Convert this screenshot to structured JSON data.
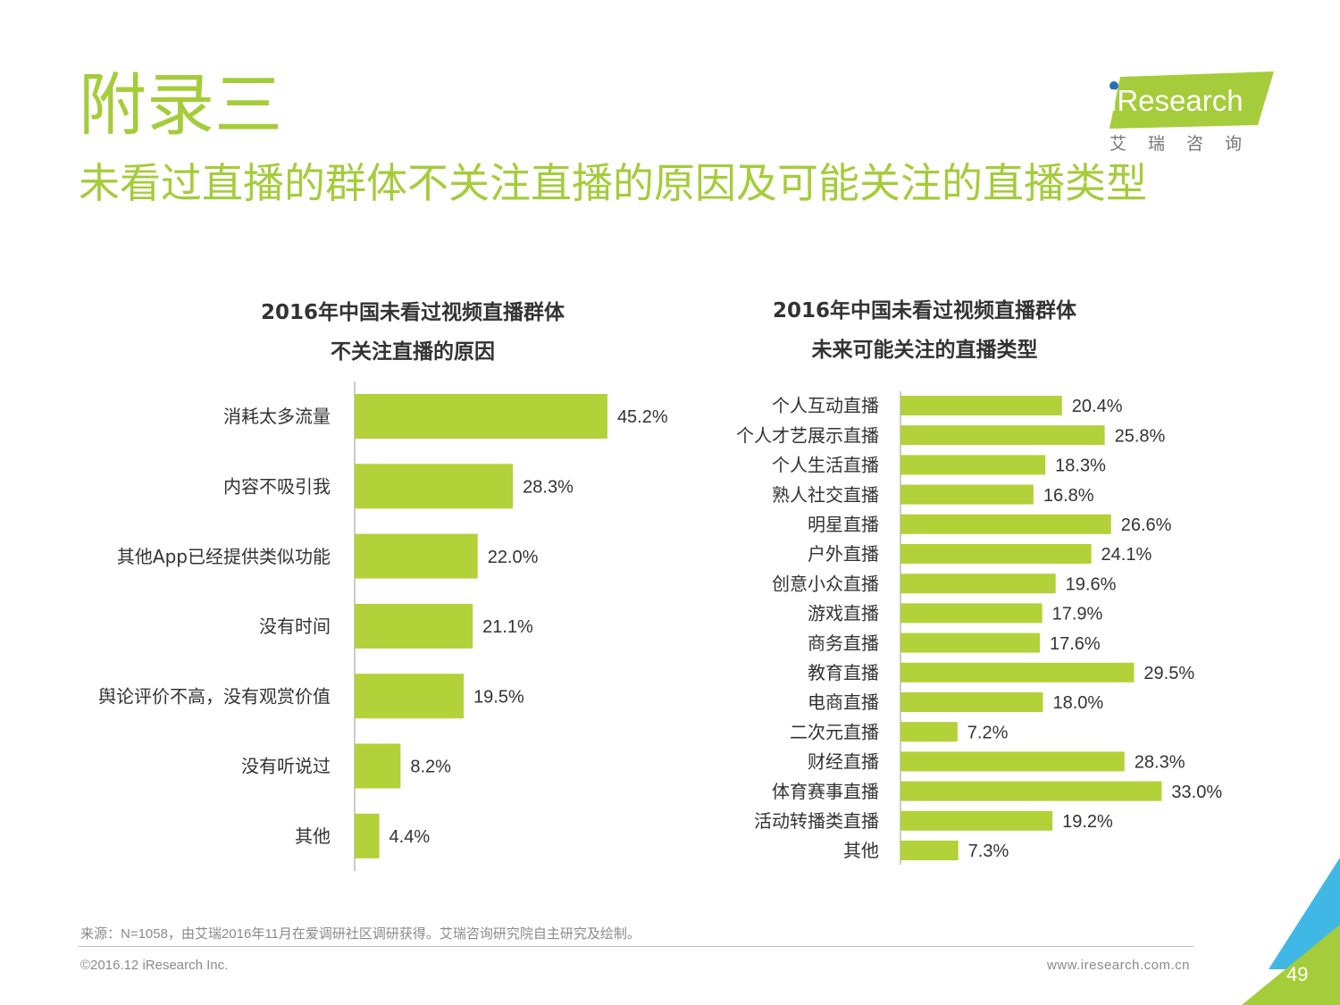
{
  "header": {
    "title": "附录三",
    "subtitle": "未看过直播的群体不关注直播的原因及可能关注的直播类型",
    "logo_text": "iResearch",
    "logo_cn": "艾瑞咨询"
  },
  "colors": {
    "accent": "#a5cc3a",
    "bar": "#b3d138",
    "corner_blue": "#3fb8e6",
    "corner_green": "#a5cc3a"
  },
  "chart_data": [
    {
      "type": "bar",
      "orientation": "horizontal",
      "title_line1": "2016年中国未看过视频直播群体",
      "title_line2": "不关注直播的原因",
      "categories": [
        "消耗太多流量",
        "内容不吸引我",
        "其他App已经提供类似功能",
        "没有时间",
        "舆论评价不高，没有观赏价值",
        "没有听说过",
        "其他"
      ],
      "values": [
        45.2,
        28.3,
        22.0,
        21.1,
        19.5,
        8.2,
        4.4
      ],
      "labels": [
        "45.2%",
        "28.3%",
        "22.0%",
        "21.1%",
        "19.5%",
        "8.2%",
        "4.4%"
      ],
      "unit": "%",
      "xlim": [
        0,
        50
      ]
    },
    {
      "type": "bar",
      "orientation": "horizontal",
      "title_line1": "2016年中国未看过视频直播群体",
      "title_line2": "未来可能关注的直播类型",
      "categories": [
        "个人互动直播",
        "个人才艺展示直播",
        "个人生活直播",
        "熟人社交直播",
        "明星直播",
        "户外直播",
        "创意小众直播",
        "游戏直播",
        "商务直播",
        "教育直播",
        "电商直播",
        "二次元直播",
        "财经直播",
        "体育赛事直播",
        "活动转播类直播",
        "其他"
      ],
      "values": [
        20.4,
        25.8,
        18.3,
        16.8,
        26.6,
        24.1,
        19.6,
        17.9,
        17.6,
        29.5,
        18.0,
        7.2,
        28.3,
        33.0,
        19.2,
        7.3
      ],
      "labels": [
        "20.4%",
        "25.8%",
        "18.3%",
        "16.8%",
        "26.6%",
        "24.1%",
        "19.6%",
        "17.9%",
        "17.6%",
        "29.5%",
        "18.0%",
        "7.2%",
        "28.3%",
        "33.0%",
        "19.2%",
        "7.3%"
      ],
      "unit": "%",
      "xlim": [
        0,
        36
      ]
    }
  ],
  "footer": {
    "source": "来源：N=1058，由艾瑞2016年11月在爱调研社区调研获得。艾瑞咨询研究院自主研究及绘制。",
    "copyright": "©2016.12 iResearch Inc.",
    "website": "www.iresearch.com.cn",
    "page_number": "49"
  }
}
